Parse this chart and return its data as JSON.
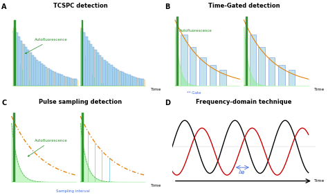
{
  "panel_A_title": "TCSPC detection",
  "panel_B_title": "Time-Gated detection",
  "panel_C_title": "Pulse sampling detection",
  "panel_D_title": "Frequency-domain technique",
  "label_A": "A",
  "label_B": "B",
  "label_C": "C",
  "label_D": "D",
  "autofluorescence_label": "Autofluorescence",
  "gate_label": "** Gate",
  "sampling_label": "Sampling interval",
  "time_label": "Time",
  "delta_phi_label": "Δφ",
  "color_green_fill": "#90EE90",
  "color_green_dark": "#228B22",
  "color_blue_bar": "#ADD8E6",
  "color_blue_bar_edge": "#6495ED",
  "color_orange_decay": "#E8820A",
  "color_orange_fill": "#FFD580",
  "color_black": "#000000",
  "color_red_wave": "#CC0000",
  "color_gate_blue": "#4169E1",
  "color_sampling_blue": "#87CEEB",
  "bg_color": "#f5f5f5"
}
